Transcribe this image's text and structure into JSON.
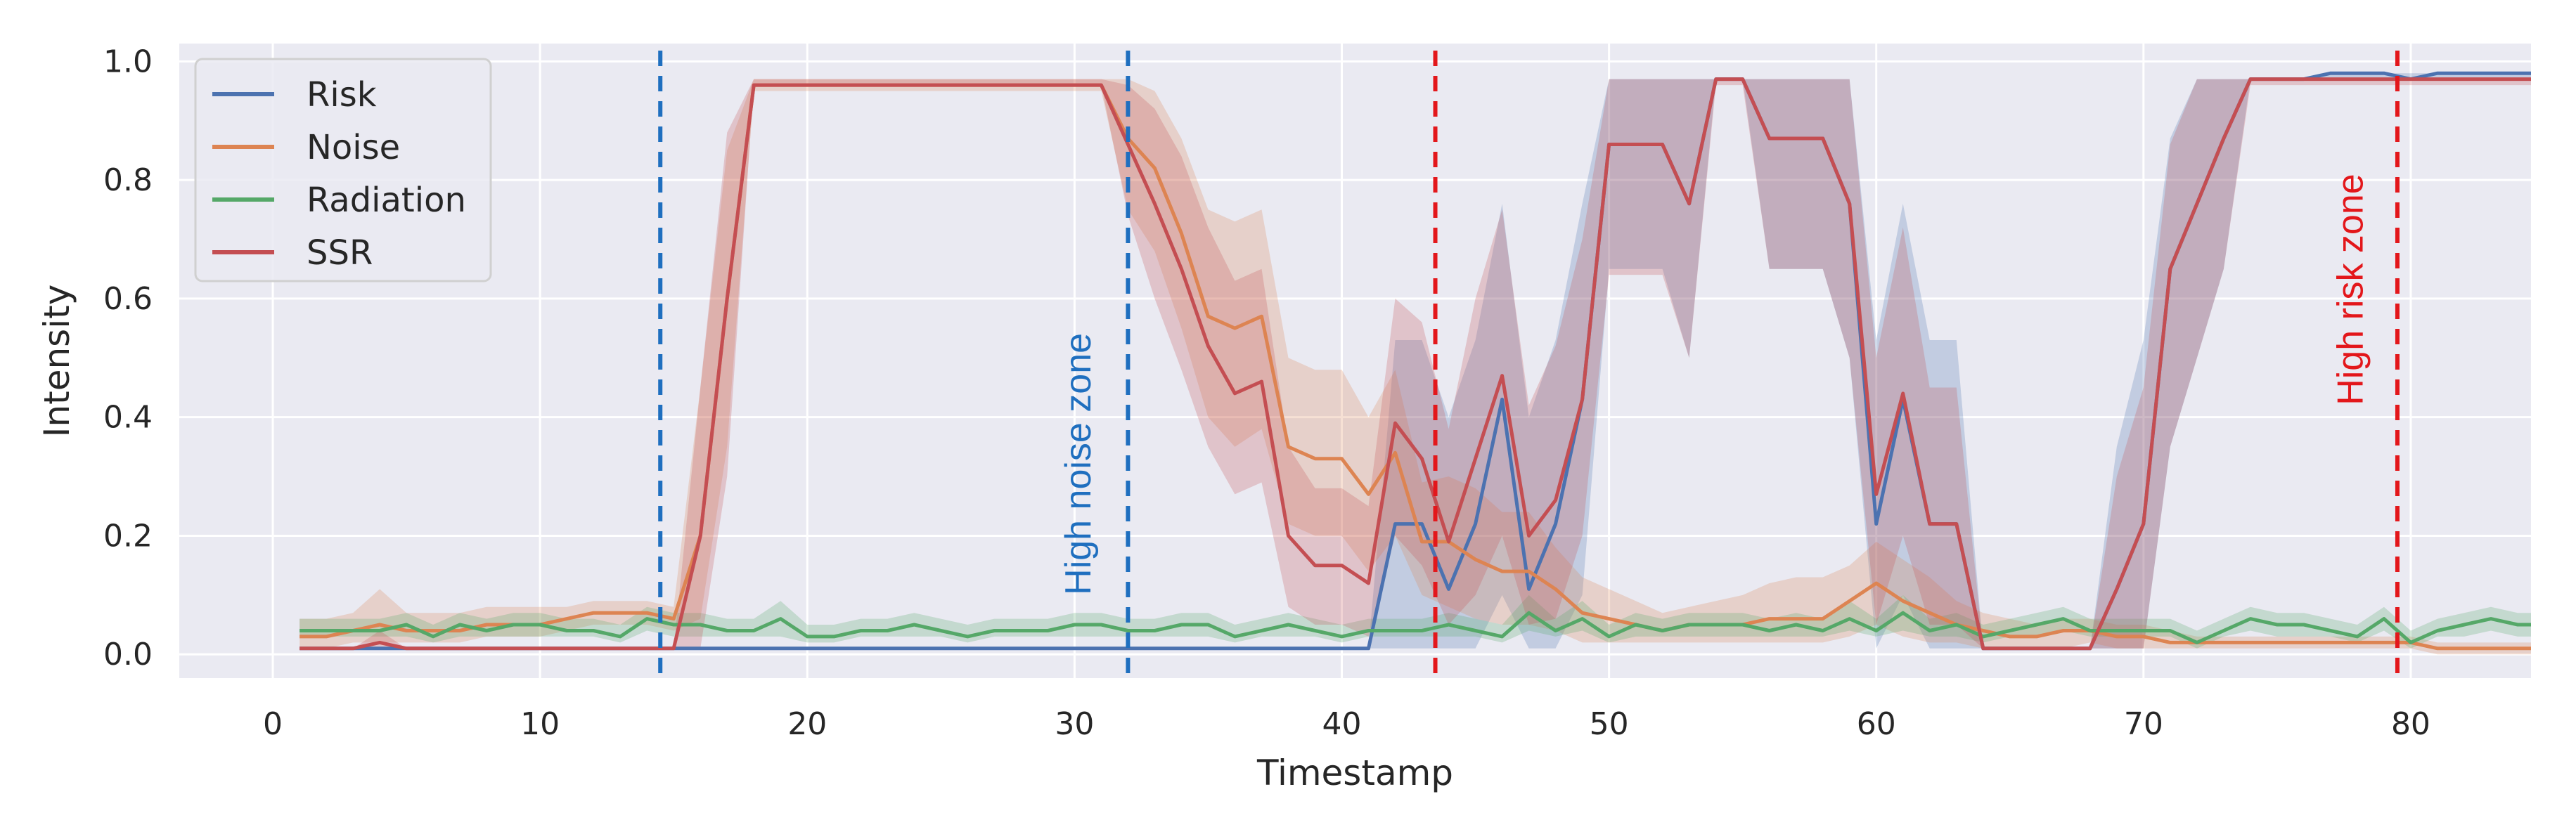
{
  "colors": {
    "background": "#eaeaf2",
    "grid": "#ffffff",
    "Risk": "#4c72b0",
    "Noise": "#dd8452",
    "Radiation": "#55a868",
    "SSR": "#c44e52",
    "noise_zone": "#1f6fbf",
    "risk_zone": "#e3171b"
  },
  "chart_data": {
    "type": "line",
    "xlabel": "Timestamp",
    "ylabel": "Intensity",
    "xlim": [
      -3.5,
      84.5
    ],
    "ylim": [
      -0.04,
      1.03
    ],
    "xticks": [
      0,
      10,
      20,
      30,
      40,
      50,
      60,
      70,
      80
    ],
    "yticks": [
      0.0,
      0.2,
      0.4,
      0.6,
      0.8,
      1.0
    ],
    "grid": true,
    "legend_position": "upper-left",
    "x": [
      1,
      2,
      3,
      4,
      5,
      6,
      7,
      8,
      9,
      10,
      11,
      12,
      13,
      14,
      15,
      16,
      17,
      18,
      19,
      20,
      21,
      22,
      23,
      24,
      25,
      26,
      27,
      28,
      29,
      30,
      31,
      32,
      33,
      34,
      35,
      36,
      37,
      38,
      39,
      40,
      41,
      42,
      43,
      44,
      45,
      46,
      47,
      48,
      49,
      50,
      51,
      52,
      53,
      54,
      55,
      56,
      57,
      58,
      59,
      60,
      61,
      62,
      63,
      64,
      65,
      66,
      67,
      68,
      69,
      70,
      71,
      72,
      73,
      74,
      75,
      76,
      77,
      78,
      79,
      80,
      81,
      82,
      83,
      84,
      85
    ],
    "series": [
      {
        "name": "Risk",
        "values": [
          0.01,
          0.01,
          0.01,
          0.01,
          0.01,
          0.01,
          0.01,
          0.01,
          0.01,
          0.01,
          0.01,
          0.01,
          0.01,
          0.01,
          0.01,
          0.01,
          0.01,
          0.01,
          0.01,
          0.01,
          0.01,
          0.01,
          0.01,
          0.01,
          0.01,
          0.01,
          0.01,
          0.01,
          0.01,
          0.01,
          0.01,
          0.01,
          0.01,
          0.01,
          0.01,
          0.01,
          0.01,
          0.01,
          0.01,
          0.01,
          0.01,
          0.22,
          0.22,
          0.11,
          0.22,
          0.43,
          0.11,
          0.22,
          0.43,
          0.86,
          0.86,
          0.86,
          0.76,
          0.97,
          0.97,
          0.87,
          0.87,
          0.87,
          0.76,
          0.22,
          0.43,
          0.22,
          0.22,
          0.01,
          0.01,
          0.01,
          0.01,
          0.01,
          0.11,
          0.22,
          0.65,
          0.76,
          0.87,
          0.97,
          0.97,
          0.97,
          0.98,
          0.98,
          0.98,
          0.97,
          0.98,
          0.98,
          0.98,
          0.98,
          0.98
        ],
        "lower": [
          0.01,
          0.01,
          0.01,
          0.01,
          0.01,
          0.01,
          0.01,
          0.01,
          0.01,
          0.01,
          0.01,
          0.01,
          0.01,
          0.01,
          0.01,
          0.01,
          0.01,
          0.01,
          0.01,
          0.01,
          0.01,
          0.01,
          0.01,
          0.01,
          0.01,
          0.01,
          0.01,
          0.01,
          0.01,
          0.01,
          0.01,
          0.01,
          0.01,
          0.01,
          0.01,
          0.01,
          0.01,
          0.01,
          0.01,
          0.01,
          0.01,
          0.01,
          0.01,
          0.01,
          0.01,
          0.1,
          0.01,
          0.01,
          0.1,
          0.65,
          0.65,
          0.65,
          0.5,
          0.97,
          0.97,
          0.65,
          0.65,
          0.65,
          0.5,
          0.01,
          0.1,
          0.01,
          0.01,
          0.01,
          0.01,
          0.01,
          0.01,
          0.01,
          0.01,
          0.01,
          0.35,
          0.5,
          0.65,
          0.97,
          0.97,
          0.97,
          0.97,
          0.97,
          0.97,
          0.97,
          0.97,
          0.97,
          0.97,
          0.97,
          0.97
        ],
        "upper": [
          0.01,
          0.01,
          0.01,
          0.01,
          0.01,
          0.01,
          0.01,
          0.01,
          0.01,
          0.01,
          0.01,
          0.01,
          0.01,
          0.01,
          0.01,
          0.01,
          0.01,
          0.01,
          0.01,
          0.01,
          0.01,
          0.01,
          0.01,
          0.01,
          0.01,
          0.01,
          0.01,
          0.01,
          0.01,
          0.01,
          0.01,
          0.01,
          0.01,
          0.01,
          0.01,
          0.01,
          0.01,
          0.01,
          0.01,
          0.01,
          0.01,
          0.53,
          0.53,
          0.4,
          0.53,
          0.76,
          0.4,
          0.53,
          0.76,
          0.97,
          0.97,
          0.97,
          0.97,
          0.97,
          0.97,
          0.97,
          0.97,
          0.97,
          0.97,
          0.53,
          0.76,
          0.53,
          0.53,
          0.01,
          0.01,
          0.01,
          0.01,
          0.01,
          0.35,
          0.53,
          0.87,
          0.97,
          0.97,
          0.97,
          0.97,
          0.97,
          0.98,
          0.98,
          0.98,
          0.98,
          0.98,
          0.98,
          0.98,
          0.98,
          0.98
        ]
      },
      {
        "name": "Noise",
        "values": [
          0.03,
          0.03,
          0.04,
          0.05,
          0.04,
          0.04,
          0.04,
          0.05,
          0.05,
          0.05,
          0.06,
          0.07,
          0.07,
          0.07,
          0.06,
          0.2,
          0.6,
          0.96,
          0.96,
          0.96,
          0.96,
          0.96,
          0.96,
          0.96,
          0.96,
          0.96,
          0.96,
          0.96,
          0.96,
          0.96,
          0.96,
          0.87,
          0.82,
          0.71,
          0.57,
          0.55,
          0.57,
          0.35,
          0.33,
          0.33,
          0.27,
          0.34,
          0.19,
          0.19,
          0.16,
          0.14,
          0.14,
          0.11,
          0.07,
          0.06,
          0.05,
          0.04,
          0.05,
          0.05,
          0.05,
          0.06,
          0.06,
          0.06,
          0.09,
          0.12,
          0.09,
          0.07,
          0.05,
          0.04,
          0.03,
          0.03,
          0.04,
          0.04,
          0.03,
          0.03,
          0.02,
          0.02,
          0.02,
          0.02,
          0.02,
          0.02,
          0.02,
          0.02,
          0.02,
          0.02,
          0.01,
          0.01,
          0.01,
          0.01,
          0.01
        ],
        "lower": [
          0.01,
          0.01,
          0.02,
          0.02,
          0.02,
          0.02,
          0.02,
          0.03,
          0.03,
          0.03,
          0.04,
          0.05,
          0.05,
          0.05,
          0.04,
          0.06,
          0.35,
          0.95,
          0.95,
          0.95,
          0.95,
          0.95,
          0.95,
          0.95,
          0.95,
          0.95,
          0.95,
          0.95,
          0.95,
          0.95,
          0.95,
          0.75,
          0.68,
          0.55,
          0.4,
          0.35,
          0.38,
          0.22,
          0.2,
          0.2,
          0.14,
          0.2,
          0.1,
          0.08,
          0.06,
          0.05,
          0.05,
          0.04,
          0.02,
          0.02,
          0.02,
          0.02,
          0.02,
          0.02,
          0.02,
          0.02,
          0.02,
          0.02,
          0.03,
          0.05,
          0.03,
          0.02,
          0.02,
          0.01,
          0.01,
          0.01,
          0.01,
          0.02,
          0.01,
          0.01,
          0.01,
          0.01,
          0.01,
          0.01,
          0.01,
          0.01,
          0.01,
          0.01,
          0.01,
          0.01,
          0.0,
          0.0,
          0.0,
          0.0,
          0.0
        ],
        "upper": [
          0.06,
          0.06,
          0.07,
          0.11,
          0.07,
          0.07,
          0.07,
          0.08,
          0.08,
          0.08,
          0.08,
          0.09,
          0.09,
          0.09,
          0.08,
          0.45,
          0.85,
          0.97,
          0.97,
          0.97,
          0.97,
          0.97,
          0.97,
          0.97,
          0.97,
          0.97,
          0.97,
          0.97,
          0.97,
          0.97,
          0.97,
          0.97,
          0.95,
          0.87,
          0.75,
          0.73,
          0.75,
          0.5,
          0.48,
          0.48,
          0.4,
          0.48,
          0.29,
          0.3,
          0.28,
          0.24,
          0.24,
          0.18,
          0.13,
          0.11,
          0.09,
          0.07,
          0.08,
          0.09,
          0.1,
          0.12,
          0.13,
          0.13,
          0.15,
          0.19,
          0.16,
          0.13,
          0.09,
          0.07,
          0.06,
          0.05,
          0.06,
          0.06,
          0.05,
          0.05,
          0.04,
          0.03,
          0.03,
          0.03,
          0.03,
          0.03,
          0.03,
          0.03,
          0.03,
          0.03,
          0.02,
          0.02,
          0.02,
          0.02,
          0.02
        ]
      },
      {
        "name": "Radiation",
        "values": [
          0.04,
          0.04,
          0.04,
          0.04,
          0.05,
          0.03,
          0.05,
          0.04,
          0.05,
          0.05,
          0.04,
          0.04,
          0.03,
          0.06,
          0.05,
          0.05,
          0.04,
          0.04,
          0.06,
          0.03,
          0.03,
          0.04,
          0.04,
          0.05,
          0.04,
          0.03,
          0.04,
          0.04,
          0.04,
          0.05,
          0.05,
          0.04,
          0.04,
          0.05,
          0.05,
          0.03,
          0.04,
          0.05,
          0.04,
          0.03,
          0.04,
          0.04,
          0.04,
          0.05,
          0.04,
          0.03,
          0.07,
          0.04,
          0.06,
          0.03,
          0.05,
          0.04,
          0.05,
          0.05,
          0.05,
          0.04,
          0.05,
          0.04,
          0.06,
          0.04,
          0.07,
          0.04,
          0.05,
          0.03,
          0.04,
          0.05,
          0.06,
          0.04,
          0.04,
          0.04,
          0.04,
          0.02,
          0.04,
          0.06,
          0.05,
          0.05,
          0.04,
          0.03,
          0.06,
          0.02,
          0.04,
          0.05,
          0.06,
          0.05,
          0.05
        ],
        "lower": [
          0.03,
          0.03,
          0.03,
          0.03,
          0.03,
          0.02,
          0.03,
          0.03,
          0.03,
          0.03,
          0.03,
          0.03,
          0.02,
          0.04,
          0.03,
          0.03,
          0.03,
          0.03,
          0.03,
          0.02,
          0.02,
          0.03,
          0.03,
          0.03,
          0.03,
          0.02,
          0.03,
          0.03,
          0.03,
          0.03,
          0.03,
          0.03,
          0.03,
          0.03,
          0.03,
          0.02,
          0.03,
          0.03,
          0.03,
          0.02,
          0.03,
          0.03,
          0.03,
          0.03,
          0.03,
          0.02,
          0.04,
          0.03,
          0.04,
          0.02,
          0.03,
          0.03,
          0.03,
          0.03,
          0.03,
          0.03,
          0.03,
          0.03,
          0.04,
          0.03,
          0.04,
          0.03,
          0.03,
          0.02,
          0.03,
          0.03,
          0.04,
          0.03,
          0.03,
          0.03,
          0.03,
          0.01,
          0.03,
          0.04,
          0.03,
          0.03,
          0.03,
          0.02,
          0.04,
          0.01,
          0.03,
          0.03,
          0.04,
          0.03,
          0.03
        ],
        "upper": [
          0.06,
          0.06,
          0.06,
          0.06,
          0.07,
          0.05,
          0.07,
          0.06,
          0.07,
          0.07,
          0.06,
          0.06,
          0.05,
          0.08,
          0.07,
          0.07,
          0.06,
          0.06,
          0.09,
          0.05,
          0.05,
          0.06,
          0.06,
          0.07,
          0.06,
          0.05,
          0.06,
          0.06,
          0.06,
          0.07,
          0.07,
          0.06,
          0.06,
          0.07,
          0.07,
          0.05,
          0.06,
          0.07,
          0.06,
          0.05,
          0.06,
          0.06,
          0.06,
          0.07,
          0.06,
          0.05,
          0.1,
          0.06,
          0.09,
          0.05,
          0.07,
          0.06,
          0.07,
          0.07,
          0.07,
          0.06,
          0.07,
          0.06,
          0.09,
          0.06,
          0.1,
          0.06,
          0.07,
          0.05,
          0.06,
          0.07,
          0.08,
          0.06,
          0.06,
          0.06,
          0.06,
          0.04,
          0.06,
          0.08,
          0.07,
          0.07,
          0.06,
          0.05,
          0.08,
          0.04,
          0.06,
          0.07,
          0.08,
          0.07,
          0.07
        ]
      },
      {
        "name": "SSR",
        "values": [
          0.01,
          0.01,
          0.01,
          0.02,
          0.01,
          0.01,
          0.01,
          0.01,
          0.01,
          0.01,
          0.01,
          0.01,
          0.01,
          0.01,
          0.01,
          0.2,
          0.6,
          0.96,
          0.96,
          0.96,
          0.96,
          0.96,
          0.96,
          0.96,
          0.96,
          0.96,
          0.96,
          0.96,
          0.96,
          0.96,
          0.96,
          0.86,
          0.76,
          0.65,
          0.52,
          0.44,
          0.46,
          0.2,
          0.15,
          0.15,
          0.12,
          0.39,
          0.33,
          0.19,
          0.33,
          0.47,
          0.2,
          0.26,
          0.43,
          0.86,
          0.86,
          0.86,
          0.76,
          0.97,
          0.97,
          0.87,
          0.87,
          0.87,
          0.76,
          0.27,
          0.44,
          0.22,
          0.22,
          0.01,
          0.01,
          0.01,
          0.01,
          0.01,
          0.11,
          0.22,
          0.65,
          0.76,
          0.87,
          0.97,
          0.97,
          0.97,
          0.97,
          0.97,
          0.97,
          0.97,
          0.97,
          0.97,
          0.97,
          0.97,
          0.97
        ],
        "lower": [
          0.01,
          0.01,
          0.01,
          0.01,
          0.01,
          0.01,
          0.01,
          0.01,
          0.01,
          0.01,
          0.01,
          0.01,
          0.01,
          0.01,
          0.01,
          0.01,
          0.3,
          0.96,
          0.96,
          0.96,
          0.96,
          0.96,
          0.96,
          0.96,
          0.96,
          0.96,
          0.96,
          0.96,
          0.96,
          0.96,
          0.96,
          0.74,
          0.6,
          0.48,
          0.35,
          0.27,
          0.29,
          0.08,
          0.05,
          0.05,
          0.03,
          0.2,
          0.15,
          0.05,
          0.1,
          0.2,
          0.05,
          0.06,
          0.2,
          0.64,
          0.64,
          0.64,
          0.5,
          0.96,
          0.96,
          0.65,
          0.65,
          0.65,
          0.5,
          0.05,
          0.2,
          0.05,
          0.05,
          0.01,
          0.01,
          0.01,
          0.01,
          0.01,
          0.01,
          0.01,
          0.35,
          0.5,
          0.65,
          0.96,
          0.96,
          0.96,
          0.96,
          0.96,
          0.96,
          0.96,
          0.96,
          0.96,
          0.96,
          0.96,
          0.96
        ],
        "upper": [
          0.01,
          0.01,
          0.01,
          0.04,
          0.01,
          0.01,
          0.01,
          0.01,
          0.01,
          0.01,
          0.01,
          0.01,
          0.01,
          0.01,
          0.01,
          0.45,
          0.88,
          0.97,
          0.97,
          0.97,
          0.97,
          0.97,
          0.97,
          0.97,
          0.97,
          0.97,
          0.97,
          0.97,
          0.97,
          0.97,
          0.97,
          0.96,
          0.92,
          0.84,
          0.72,
          0.63,
          0.65,
          0.35,
          0.28,
          0.28,
          0.25,
          0.6,
          0.56,
          0.38,
          0.6,
          0.75,
          0.42,
          0.52,
          0.7,
          0.97,
          0.97,
          0.97,
          0.97,
          0.97,
          0.97,
          0.97,
          0.97,
          0.97,
          0.97,
          0.5,
          0.72,
          0.45,
          0.45,
          0.01,
          0.01,
          0.01,
          0.01,
          0.01,
          0.3,
          0.45,
          0.86,
          0.97,
          0.97,
          0.97,
          0.97,
          0.97,
          0.97,
          0.97,
          0.97,
          0.97,
          0.97,
          0.97,
          0.97,
          0.97,
          0.97
        ]
      }
    ],
    "vlines": [
      {
        "x": 14.5,
        "color": "noise_zone"
      },
      {
        "x": 32.0,
        "color": "noise_zone"
      },
      {
        "x": 43.5,
        "color": "risk_zone"
      },
      {
        "x": 79.5,
        "color": "risk_zone"
      }
    ],
    "annotations": [
      {
        "text": "High noise zone",
        "x": 30.6,
        "y": 0.1,
        "color": "noise_zone"
      },
      {
        "text": "High risk zone",
        "x": 78.2,
        "y": 0.42,
        "color": "risk_zone"
      }
    ]
  }
}
